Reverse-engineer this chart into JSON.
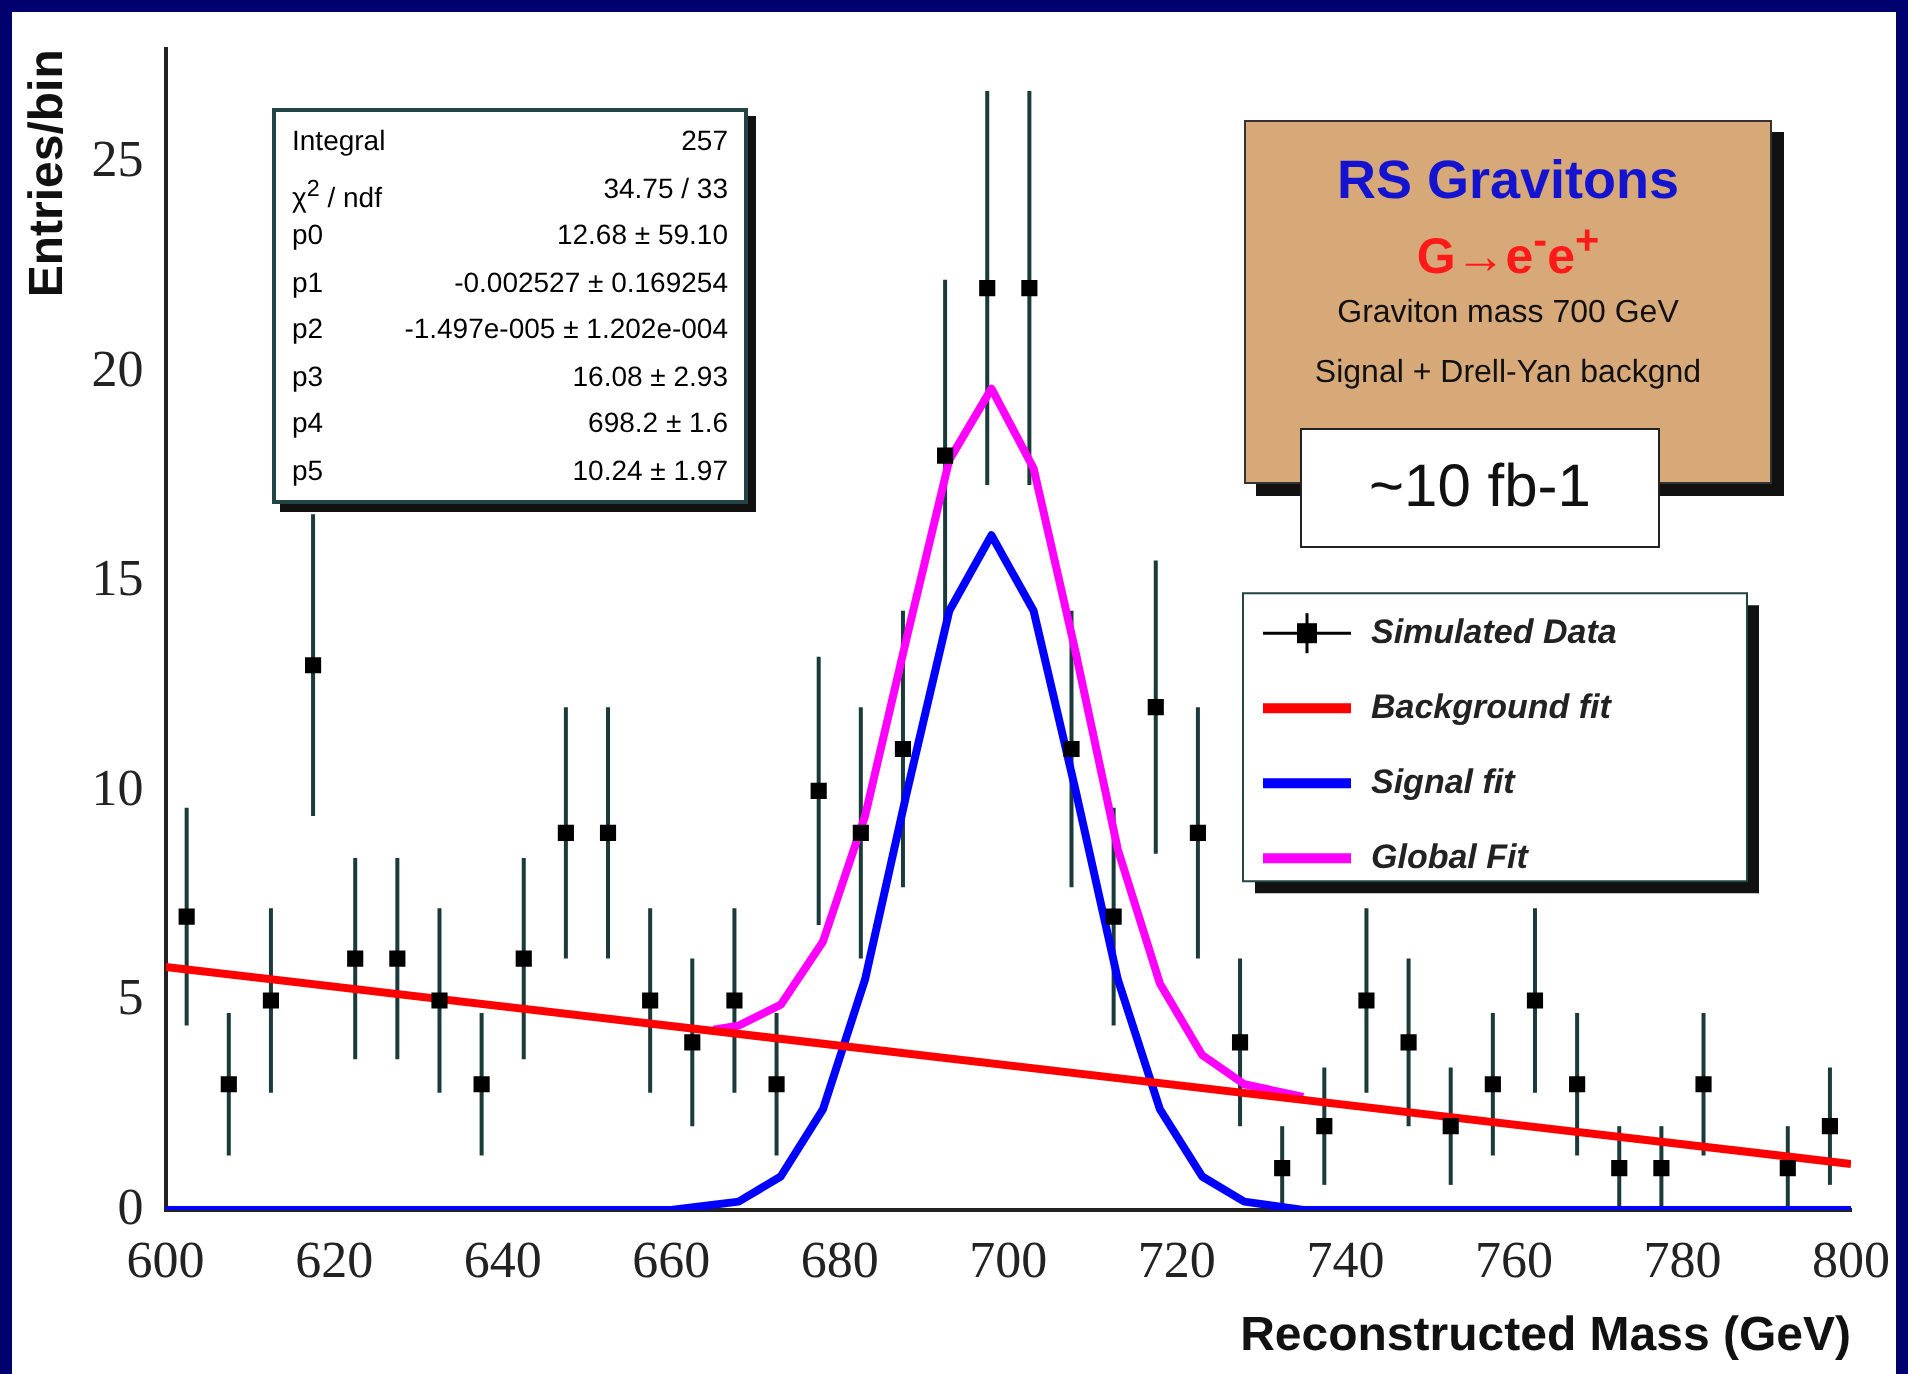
{
  "chart_data": {
    "type": "scatter",
    "xlabel": "Reconstructed Mass (GeV)",
    "ylabel": "Entries/bin",
    "xlim": [
      600,
      800
    ],
    "xticks": [
      600,
      620,
      640,
      660,
      680,
      700,
      720,
      740,
      760,
      780,
      800
    ],
    "ylim": [
      0,
      27.7
    ],
    "yticks": [
      0,
      5,
      10,
      15,
      20,
      25
    ],
    "grid": false,
    "legend": "right",
    "series": [
      {
        "name": "Simulated Data",
        "type": "scatter",
        "marker": "square",
        "color": "#000000",
        "x": [
          602.5,
          607.5,
          612.5,
          617.5,
          622.5,
          627.5,
          632.5,
          637.5,
          642.5,
          647.5,
          652.5,
          657.5,
          662.5,
          667.5,
          672.5,
          677.5,
          682.5,
          687.5,
          692.5,
          697.5,
          702.5,
          707.5,
          712.5,
          717.5,
          722.5,
          727.5,
          732.5,
          737.5,
          742.5,
          747.5,
          752.5,
          757.5,
          762.5,
          767.5,
          772.5,
          777.5,
          782.5,
          787.5,
          792.5,
          797.5
        ],
        "values": [
          7,
          3,
          5,
          13,
          6,
          6,
          5,
          3,
          6,
          9,
          9,
          5,
          4,
          5,
          3,
          10,
          9,
          11,
          18,
          22,
          22,
          11,
          7,
          12,
          9,
          4,
          1,
          2,
          5,
          4,
          2,
          3,
          5,
          3,
          1,
          1,
          3,
          null,
          1,
          2
        ],
        "errors": [
          2.6,
          1.7,
          2.2,
          3.6,
          2.4,
          2.4,
          2.2,
          1.7,
          2.4,
          3,
          3,
          2.2,
          2,
          2.2,
          1.7,
          3.2,
          3,
          3.3,
          4.2,
          4.7,
          4.7,
          3.3,
          2.6,
          3.5,
          3,
          2,
          1,
          1.4,
          2.2,
          2,
          1.4,
          1.7,
          2.2,
          1.7,
          1,
          1,
          1.7,
          null,
          1,
          1.4
        ]
      },
      {
        "name": "Background fit",
        "type": "line",
        "marker": "none",
        "color": "#ff0000",
        "x": [
          600,
          800
        ],
        "values": [
          5.8,
          1.1
        ]
      },
      {
        "name": "Signal fit",
        "type": "line",
        "marker": "none",
        "color": "#0000ff",
        "x": [
          600,
          660,
          668,
          673,
          678,
          683,
          688,
          693,
          698,
          703,
          708,
          713,
          718,
          723,
          728,
          735,
          800
        ],
        "values": [
          0,
          0,
          0.2,
          0.8,
          2.4,
          5.5,
          10,
          14.3,
          16.1,
          14.3,
          10,
          5.5,
          2.4,
          0.8,
          0.2,
          0,
          0
        ]
      },
      {
        "name": "Global Fit",
        "type": "line",
        "marker": "none",
        "color": "#ff00ff",
        "x": [
          665,
          668,
          673,
          678,
          683,
          688,
          693,
          698,
          703,
          708,
          713,
          718,
          723,
          728,
          735
        ],
        "values": [
          4.3,
          4.4,
          4.9,
          6.4,
          9.4,
          13.7,
          17.9,
          19.6,
          17.7,
          13.3,
          8.6,
          5.4,
          3.7,
          3,
          2.7
        ]
      }
    ],
    "annotations": [
      "Integral",
      "257",
      "χ$^{2}$ / ndf",
      "34.75 / 33",
      "p0",
      "12.68 ± 59.10",
      "p1",
      "-0.002527 ± 0.169254",
      "p2",
      "-1.497e-005 ± 1.202e-004",
      "p3",
      "16.08 ± 2.93",
      "p4",
      "698.2 ± 1.6",
      "p5",
      "10.24 ± 1.97",
      "RS Gravitons",
      "G→e$^{-}$e$^{+}$",
      "Graviton mass 700 GeV",
      "Signal + Drell-Yan backgnd",
      "~10 fb-1"
    ]
  }
}
